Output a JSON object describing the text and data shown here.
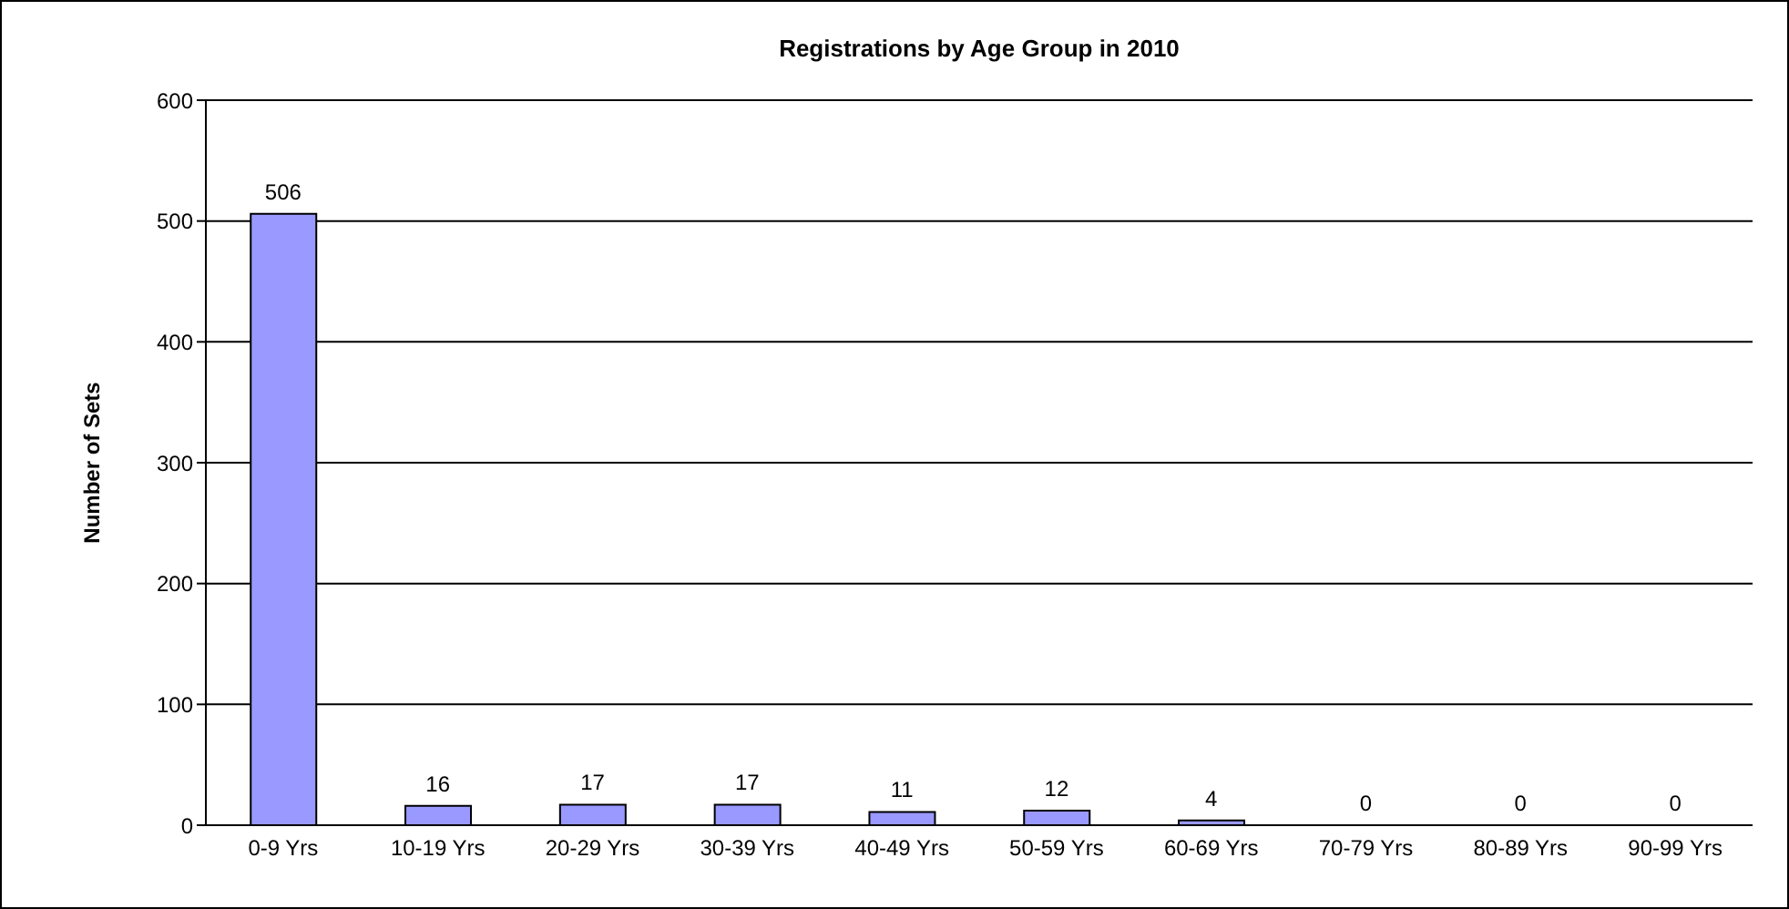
{
  "chart_data": {
    "type": "bar",
    "title": "Registrations by Age Group in 2010",
    "ylabel": "Number of Sets",
    "categories": [
      "0-9 Yrs",
      "10-19 Yrs",
      "20-29 Yrs",
      "30-39 Yrs",
      "40-49 Yrs",
      "50-59 Yrs",
      "60-69 Yrs",
      "70-79 Yrs",
      "80-89 Yrs",
      "90-99 Yrs"
    ],
    "values": [
      506,
      16,
      17,
      17,
      11,
      12,
      4,
      0,
      0,
      0
    ],
    "color": "#9999ff",
    "ylim": [
      0,
      600
    ],
    "yticks": [
      0,
      100,
      200,
      300,
      400,
      500,
      600
    ],
    "grid": "y",
    "data_labels": true
  }
}
